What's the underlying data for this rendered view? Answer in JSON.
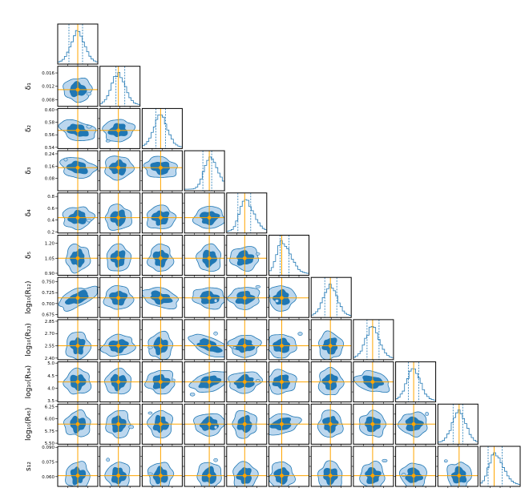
{
  "chart_data": {
    "type": "corner",
    "colors": {
      "contour_outer": "#bcd7ee",
      "contour_inner": "#1f77b4",
      "edge": "#1f77b4",
      "truth": "#ffa500",
      "hist": "#1f77b4"
    },
    "parameters": [
      {
        "label": "",
        "ticks": [],
        "ylim": [
          0,
          1
        ],
        "truth": 0.5
      },
      {
        "label": "δ₁",
        "ticks": [
          "0.016",
          "0.012",
          "0.008"
        ],
        "tick_values": [
          0.016,
          0.012,
          0.008
        ],
        "ylim": [
          0.006,
          0.018
        ],
        "truth": 0.011
      },
      {
        "label": "δ₂",
        "ticks": [
          "0.60",
          "0.58",
          "0.56",
          "0.54"
        ],
        "tick_values": [
          0.6,
          0.58,
          0.56,
          0.54
        ],
        "ylim": [
          0.538,
          0.602
        ],
        "truth": 0.567
      },
      {
        "label": "δ₃",
        "ticks": [
          "0.24",
          "0.16",
          "0.08"
        ],
        "tick_values": [
          0.24,
          0.16,
          0.08
        ],
        "ylim": [
          0.0,
          0.26
        ],
        "truth": 0.15
      },
      {
        "label": "δ₄",
        "ticks": [
          "0.8",
          "0.6",
          "0.4",
          "0.2"
        ],
        "tick_values": [
          0.8,
          0.6,
          0.4,
          0.2
        ],
        "ylim": [
          0.18,
          0.86
        ],
        "truth": 0.44
      },
      {
        "label": "δ₅",
        "ticks": [
          "1.20",
          "1.05",
          "0.90"
        ],
        "tick_values": [
          1.2,
          1.05,
          0.9
        ],
        "ylim": [
          0.88,
          1.28
        ],
        "truth": 1.05
      },
      {
        "label": "log₁₀(R₁₂)",
        "ticks": [
          "0.750",
          "0.725",
          "0.700",
          "0.675"
        ],
        "tick_values": [
          0.75,
          0.725,
          0.7,
          0.675
        ],
        "ylim": [
          0.668,
          0.76
        ],
        "truth": 0.713
      },
      {
        "label": "log₁₀(R₂₃)",
        "ticks": [
          "2.85",
          "2.70",
          "2.55",
          "2.40"
        ],
        "tick_values": [
          2.85,
          2.7,
          2.55,
          2.4
        ],
        "ylim": [
          2.38,
          2.87
        ],
        "truth": 2.55
      },
      {
        "label": "log₁₀(R₃₄)",
        "ticks": [
          "5.0",
          "4.5",
          "4.0",
          "3.5"
        ],
        "tick_values": [
          5.0,
          4.5,
          4.0,
          3.5
        ],
        "ylim": [
          3.45,
          5.05
        ],
        "truth": 4.25
      },
      {
        "label": "log₁₀(R₄₅)",
        "ticks": [
          "6.25",
          "6.00",
          "5.75",
          "5.50"
        ],
        "tick_values": [
          6.25,
          6.0,
          5.75,
          5.5
        ],
        "ylim": [
          5.48,
          6.3
        ],
        "truth": 5.89
      },
      {
        "label": "s₁₂",
        "ticks": [
          "0.090",
          "0.075",
          "0.060"
        ],
        "tick_values": [
          0.09,
          0.075,
          0.06
        ],
        "ylim": [
          0.05,
          0.091
        ],
        "truth": 0.061
      }
    ],
    "diagonal_truth_fraction": [
      0.5,
      0.46,
      0.46,
      0.62,
      0.45,
      0.32,
      0.48,
      0.48,
      0.45,
      0.53,
      0.35
    ],
    "diagonal_quantiles": [
      [
        0.28,
        0.62
      ],
      [
        0.4,
        0.62
      ],
      [
        0.34,
        0.58
      ],
      [
        0.46,
        0.68
      ],
      [
        0.28,
        0.6
      ],
      [
        0.28,
        0.5
      ],
      [
        0.34,
        0.64
      ],
      [
        0.34,
        0.64
      ],
      [
        0.32,
        0.58
      ],
      [
        0.38,
        0.62
      ],
      [
        0.2,
        0.55
      ]
    ],
    "correlations": {
      "1-0": 0.2,
      "2-0": -0.6,
      "2-1": 0.3,
      "3-0": -0.5,
      "3-1": 0.2,
      "3-2": -0.4,
      "4-0": 0.3,
      "4-1": 0.1,
      "4-2": -0.2,
      "4-3": 0.3,
      "5-0": 0.0,
      "5-1": 0.0,
      "5-2": 0.0,
      "5-3": 0.0,
      "5-4": 0.2,
      "6-0": 0.8,
      "6-1": 0.2,
      "6-2": -0.6,
      "6-3": -0.4,
      "6-4": 0.3,
      "6-5": 0.1,
      "7-0": 0.0,
      "7-1": 0.4,
      "7-2": 0.0,
      "7-3": -0.8,
      "7-4": 0.3,
      "7-5": 0.2,
      "7-6": 0.0,
      "8-0": 0.1,
      "8-1": -0.1,
      "8-2": -0.2,
      "8-3": 0.6,
      "8-4": 0.4,
      "8-5": 0.2,
      "8-6": 0.0,
      "8-7": -0.5,
      "9-0": 0.1,
      "9-1": 0.0,
      "9-2": 0.0,
      "9-3": 0.3,
      "9-4": 0.0,
      "9-5": 0.5,
      "9-6": 0.0,
      "9-7": 0.1,
      "9-8": 0.2,
      "10-0": 0.0,
      "10-1": 0.0,
      "10-2": 0.0,
      "10-3": 0.0,
      "10-4": 0.0,
      "10-5": 0.0,
      "10-6": 0.0,
      "10-7": 0.0,
      "10-8": 0.1,
      "10-9": 0.0
    }
  }
}
